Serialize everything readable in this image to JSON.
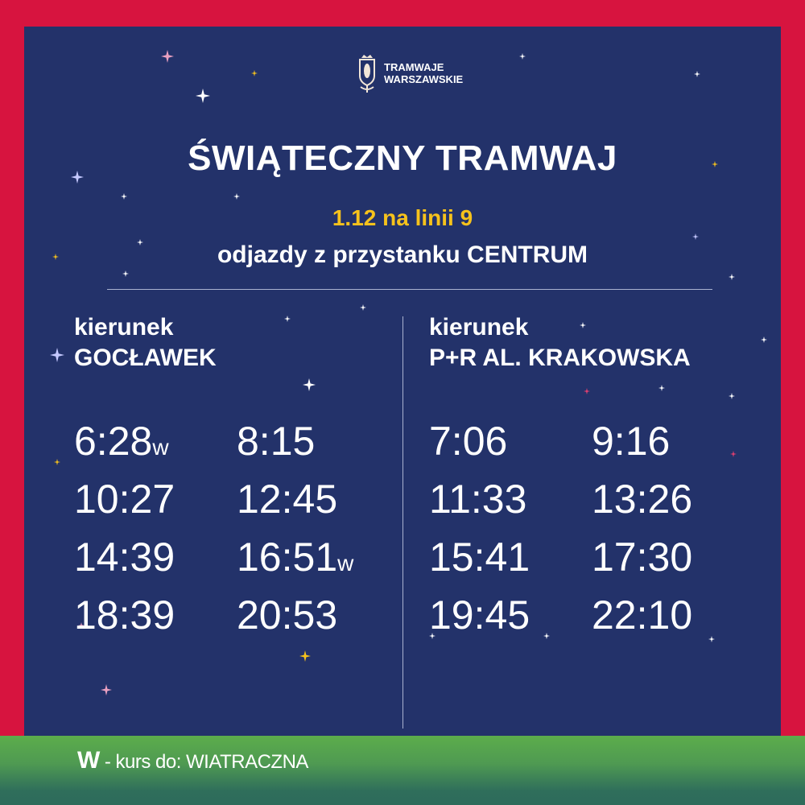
{
  "logo": {
    "line1": "TRAMWAJE",
    "line2": "WARSZAWSKIE"
  },
  "title": "ŚWIĄTECZNY TRAMWAJ",
  "date_line": "1.12 na linii 9",
  "stop_line": "odjazdy z przystanku CENTRUM",
  "directions": [
    {
      "label": "kierunek",
      "name": "GOCŁAWEK",
      "times": [
        {
          "t": "6:28",
          "m": "w"
        },
        {
          "t": "8:15",
          "m": ""
        },
        {
          "t": "10:27",
          "m": ""
        },
        {
          "t": "12:45",
          "m": ""
        },
        {
          "t": "14:39",
          "m": ""
        },
        {
          "t": "16:51",
          "m": "w"
        },
        {
          "t": "18:39",
          "m": ""
        },
        {
          "t": "20:53",
          "m": ""
        }
      ]
    },
    {
      "label": "kierunek",
      "name": "P+R AL. KRAKOWSKA",
      "times": [
        {
          "t": "7:06",
          "m": ""
        },
        {
          "t": "9:16",
          "m": ""
        },
        {
          "t": "11:33",
          "m": ""
        },
        {
          "t": "13:26",
          "m": ""
        },
        {
          "t": "15:41",
          "m": ""
        },
        {
          "t": "17:30",
          "m": ""
        },
        {
          "t": "19:45",
          "m": ""
        },
        {
          "t": "22:10",
          "m": ""
        }
      ]
    }
  ],
  "footer": {
    "key": "W",
    "text": "- kurs do: WIATRACZNA"
  },
  "colors": {
    "frame": "#d7143f",
    "panel": "#23326a",
    "accent": "#f6c21c",
    "footer": "#5cad4b"
  }
}
